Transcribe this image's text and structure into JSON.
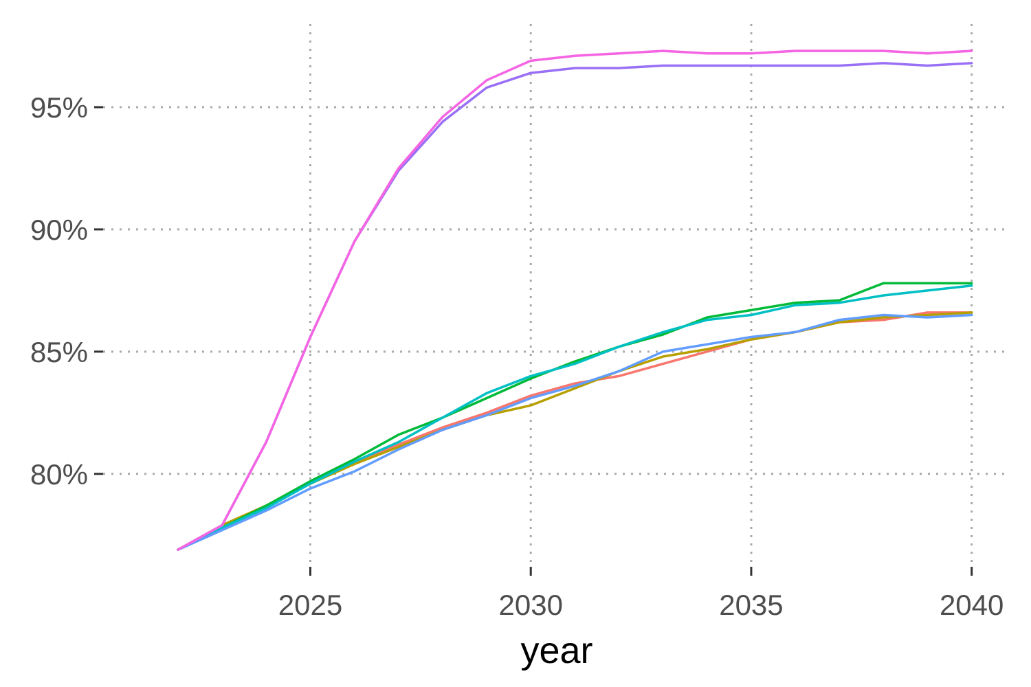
{
  "chart_data": {
    "type": "line",
    "title": "",
    "xlabel": "year",
    "ylabel": "",
    "x": [
      2022,
      2023,
      2024,
      2025,
      2026,
      2027,
      2028,
      2029,
      2030,
      2031,
      2032,
      2033,
      2034,
      2035,
      2036,
      2037,
      2038,
      2039,
      2040
    ],
    "xlim": [
      2020.3,
      2040.8
    ],
    "ylim": [
      76.2,
      98.4
    ],
    "x_ticks": [
      2025,
      2030,
      2035,
      2040
    ],
    "x_tick_labels": [
      "2025",
      "2030",
      "2035",
      "2040"
    ],
    "y_ticks": [
      80,
      85,
      90,
      95
    ],
    "y_tick_labels": [
      "80%",
      "85%",
      "90%",
      "95%"
    ],
    "grid": true,
    "legend": "none",
    "series": [
      {
        "color": "#F8766D",
        "values": [
          76.9,
          77.9,
          78.7,
          79.6,
          80.5,
          81.2,
          81.9,
          82.5,
          83.2,
          83.7,
          84.0,
          84.5,
          85.0,
          85.5,
          85.8,
          86.2,
          86.3,
          86.6,
          86.6
        ]
      },
      {
        "color": "#B79F00",
        "values": [
          76.9,
          77.9,
          78.7,
          79.6,
          80.4,
          81.1,
          81.8,
          82.4,
          82.8,
          83.5,
          84.2,
          84.8,
          85.1,
          85.5,
          85.8,
          86.2,
          86.4,
          86.5,
          86.6
        ]
      },
      {
        "color": "#00BA38",
        "values": [
          76.9,
          77.8,
          78.7,
          79.7,
          80.6,
          81.6,
          82.3,
          83.1,
          83.9,
          84.6,
          85.2,
          85.7,
          86.4,
          86.7,
          87.0,
          87.1,
          87.8,
          87.8,
          87.8
        ]
      },
      {
        "color": "#00BFC4",
        "values": [
          76.9,
          77.8,
          78.6,
          79.6,
          80.5,
          81.3,
          82.3,
          83.3,
          84.0,
          84.5,
          85.2,
          85.8,
          86.3,
          86.5,
          86.9,
          87.0,
          87.3,
          87.5,
          87.7
        ]
      },
      {
        "color": "#619CFF",
        "values": [
          76.9,
          77.7,
          78.5,
          79.4,
          80.1,
          81.0,
          81.8,
          82.4,
          83.1,
          83.6,
          84.2,
          85.0,
          85.3,
          85.6,
          85.8,
          86.3,
          86.5,
          86.4,
          86.5
        ]
      },
      {
        "color": "#9970F5",
        "values": [
          76.9,
          77.9,
          81.3,
          85.6,
          89.5,
          92.4,
          94.4,
          95.8,
          96.4,
          96.6,
          96.6,
          96.7,
          96.7,
          96.7,
          96.7,
          96.7,
          96.8,
          96.7,
          96.8
        ]
      },
      {
        "color": "#F564E3",
        "values": [
          76.9,
          77.9,
          81.3,
          85.6,
          89.5,
          92.5,
          94.6,
          96.1,
          96.9,
          97.1,
          97.2,
          97.3,
          97.2,
          97.2,
          97.3,
          97.3,
          97.3,
          97.2,
          97.3
        ]
      }
    ]
  }
}
